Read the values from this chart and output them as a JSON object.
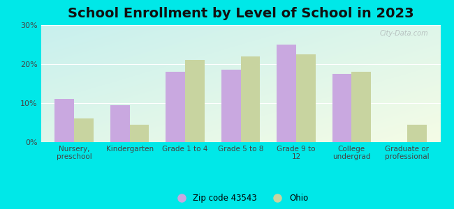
{
  "title": "School Enrollment by Level of School in 2023",
  "categories": [
    "Nursery,\npreschool",
    "Kindergarten",
    "Grade 1 to 4",
    "Grade 5 to 8",
    "Grade 9 to\n12",
    "College\nundergrad",
    "Graduate or\nprofessional"
  ],
  "zip_values": [
    11.0,
    9.5,
    18.0,
    18.5,
    25.0,
    17.5,
    0.0
  ],
  "ohio_values": [
    6.0,
    4.5,
    21.0,
    22.0,
    22.5,
    18.0,
    4.5
  ],
  "zip_color": "#c9a8e0",
  "ohio_color": "#c8d4a0",
  "background_outer": "#00e8e8",
  "grad_top_left": "#c8f0ee",
  "grad_bottom_right": "#edfaed",
  "ylim": [
    0,
    30
  ],
  "yticks": [
    0,
    10,
    20,
    30
  ],
  "ytick_labels": [
    "0%",
    "10%",
    "20%",
    "30%"
  ],
  "zip_label": "Zip code 43543",
  "ohio_label": "Ohio",
  "title_fontsize": 14,
  "bar_width": 0.35,
  "watermark": "City-Data.com"
}
